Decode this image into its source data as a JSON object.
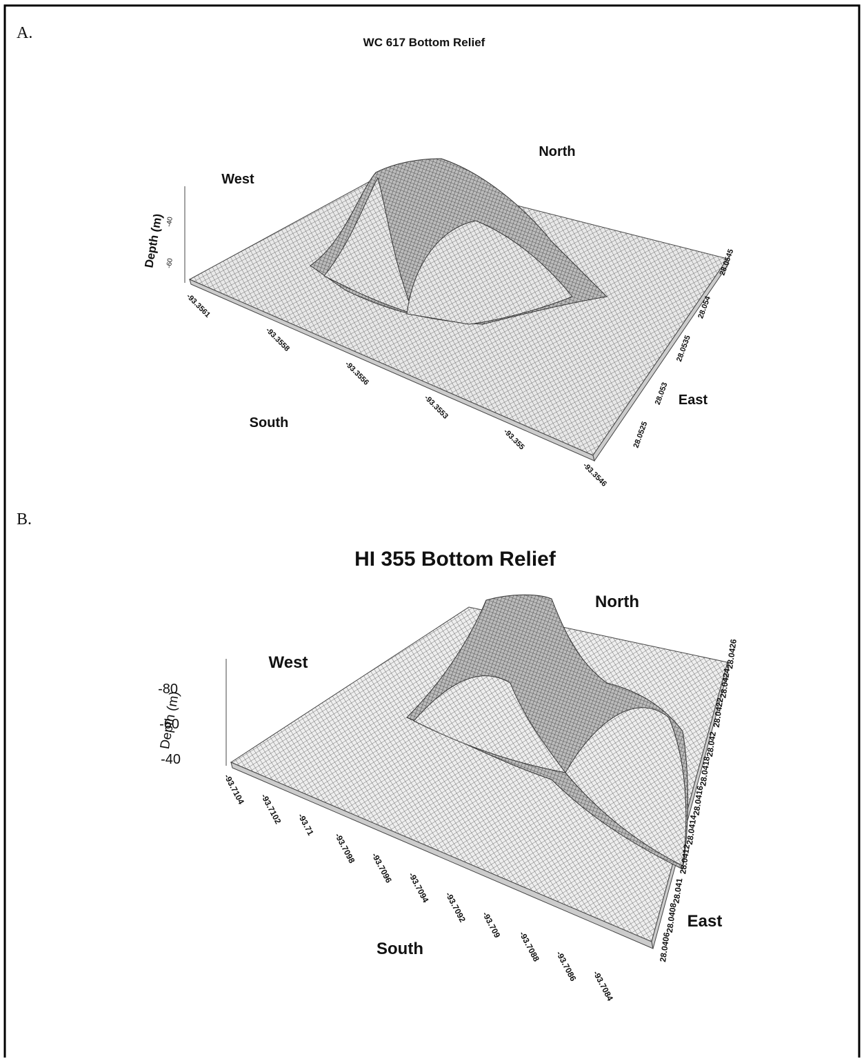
{
  "panels": [
    {
      "label": "A.",
      "title": "WC 617 Bottom Relief",
      "north": "North",
      "west": "West",
      "south": "South",
      "east": "East",
      "z_axis_label": "Depth (m)",
      "z_ticks": [
        "-60",
        "-40"
      ],
      "x_ticks": [
        "-93.3561",
        "-93.3558",
        "-93.3556",
        "-93.3553",
        "-93.355",
        "-93.3546"
      ],
      "y_ticks": [
        "28.0525",
        "28.053",
        "28.0535",
        "28.054",
        "28.0545"
      ]
    },
    {
      "label": "B.",
      "title": "HI 355 Bottom Relief",
      "north": "North",
      "west": "West",
      "south": "South",
      "east": "East",
      "z_axis_label": "Depth (m)",
      "z_ticks": [
        "-40",
        "-60",
        "-80"
      ],
      "x_ticks": [
        "-93.7104",
        "-93.7102",
        "-93.71",
        "-93.7098",
        "-93.7096",
        "-93.7094",
        "-93.7092",
        "-93.709",
        "-93.7088",
        "-93.7086",
        "-93.7084"
      ],
      "y_ticks": [
        "28.0406",
        "28.0408",
        "28.041",
        "28.0412",
        "28.0414",
        "28.0416",
        "28.0418",
        "28.042",
        "28.0422",
        "28.0424",
        "28.0426"
      ]
    }
  ]
}
